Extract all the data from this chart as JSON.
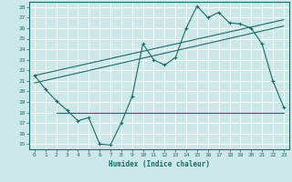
{
  "xlabel": "Humidex (Indice chaleur)",
  "bg_color": "#cde8e8",
  "grid_color": "#ffffff",
  "line_color": "#1a6b6b",
  "xlim": [
    -0.5,
    23.5
  ],
  "ylim": [
    14.5,
    28.5
  ],
  "xticks": [
    0,
    1,
    2,
    3,
    4,
    5,
    6,
    7,
    8,
    9,
    10,
    11,
    12,
    13,
    14,
    15,
    16,
    17,
    18,
    19,
    20,
    21,
    22,
    23
  ],
  "yticks": [
    15,
    16,
    17,
    18,
    19,
    20,
    21,
    22,
    23,
    24,
    25,
    26,
    27,
    28
  ],
  "curve1_x": [
    0,
    1,
    2,
    3,
    4,
    5,
    6,
    7,
    8,
    9,
    10,
    11,
    12,
    13,
    14,
    15,
    16,
    17,
    18,
    19,
    20,
    21,
    22,
    23
  ],
  "curve1_y": [
    21.5,
    20.2,
    19.1,
    18.2,
    17.2,
    17.5,
    15.0,
    14.9,
    17.0,
    19.5,
    24.5,
    23.0,
    22.5,
    23.2,
    26.0,
    28.1,
    27.0,
    27.5,
    26.5,
    26.4,
    26.0,
    24.5,
    21.0,
    18.5
  ],
  "line2_x": [
    0,
    23
  ],
  "line2_y": [
    20.8,
    26.2
  ],
  "line3_x": [
    0,
    23
  ],
  "line3_y": [
    21.5,
    26.8
  ],
  "hline_x": [
    2,
    23
  ],
  "hline_y": [
    18.0,
    18.0
  ]
}
